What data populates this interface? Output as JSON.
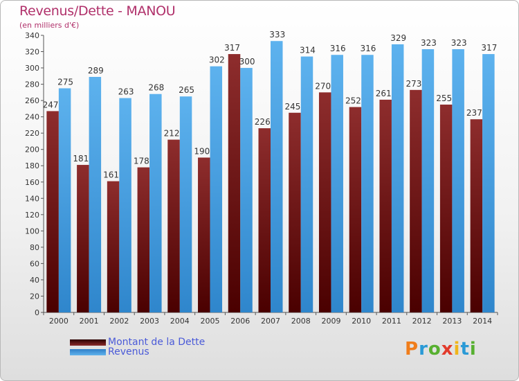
{
  "title": "Revenus/Dette - MANOU",
  "subtitle": "(en milliers d'€)",
  "logo_letters": [
    {
      "char": "P",
      "color": "#f07d1b"
    },
    {
      "char": "r",
      "color": "#2a9ad6"
    },
    {
      "char": "o",
      "color": "#57b030"
    },
    {
      "char": "x",
      "color": "#e23b2c"
    },
    {
      "char": "i",
      "color": "#f0b51b"
    },
    {
      "char": "t",
      "color": "#2a9ad6"
    },
    {
      "char": "i",
      "color": "#57b030"
    }
  ],
  "chart_data": {
    "type": "bar",
    "categories": [
      "2000",
      "2001",
      "2002",
      "2003",
      "2004",
      "2005",
      "2006",
      "2007",
      "2008",
      "2009",
      "2010",
      "2011",
      "2012",
      "2013",
      "2014"
    ],
    "series": [
      {
        "name": "Montant de la Dette",
        "color": "#7a1a1a",
        "values": [
          247,
          181,
          161,
          178,
          212,
          190,
          317,
          226,
          245,
          270,
          252,
          261,
          273,
          255,
          237
        ]
      },
      {
        "name": "Revenus",
        "color": "#4aa3e6",
        "values": [
          275,
          289,
          263,
          268,
          265,
          302,
          300,
          333,
          314,
          316,
          316,
          329,
          323,
          323,
          317
        ]
      }
    ],
    "ylim": [
      0,
      340
    ],
    "ytick_step": 20,
    "grid": false,
    "legend_position": "bottom-left"
  }
}
